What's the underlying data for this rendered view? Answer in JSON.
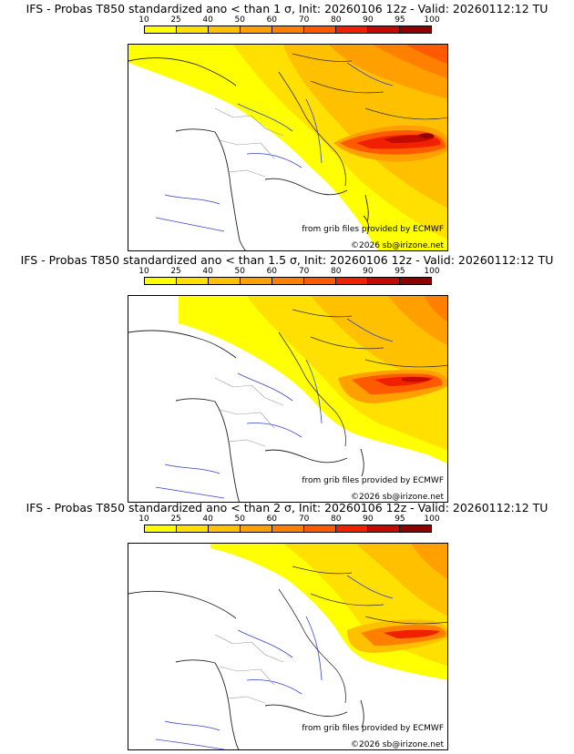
{
  "colorbar": {
    "ticks": [
      "10",
      "25",
      "40",
      "50",
      "60",
      "70",
      "80",
      "90",
      "95",
      "100"
    ],
    "colors": [
      "#ffff00",
      "#ffe000",
      "#ffc000",
      "#ffa000",
      "#ff8000",
      "#ff5a00",
      "#f02000",
      "#c40a00",
      "#900000"
    ]
  },
  "panels": [
    {
      "title": "IFS - Probas T850  standardized ano < than 1 σ, Init: 20260106 12z - Valid: 20260112:12 TU",
      "source": "from grib files provided by ECMWF",
      "copyright": "©2026 sb@irizone.net"
    },
    {
      "title": "IFS - Probas T850  standardized ano < than 1.5 σ, Init: 20260106 12z - Valid: 20260112:12 TU",
      "source": "from grib files provided by ECMWF",
      "copyright": "©2026 sb@irizone.net"
    },
    {
      "title": "IFS - Probas T850  standardized ano < than 2 σ, Init: 20260106 12z - Valid: 20260112:12 TU",
      "source": "from grib files provided by ECMWF",
      "copyright": "©2026 sb@irizone.net"
    }
  ]
}
